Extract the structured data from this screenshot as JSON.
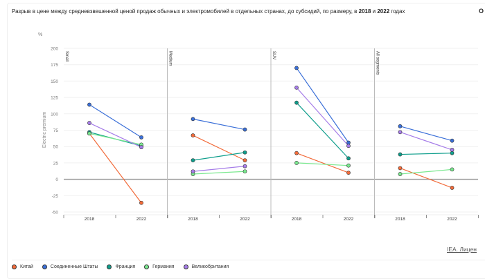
{
  "header": {
    "title_prefix": "Разрыв в цене между средневзвешенной ценой продаж обычных и электромобилей в отдельных странах, до субсидий, по размеру, в ",
    "year1": "2018",
    "and": " и ",
    "year2": "2022",
    "title_suffix": " годах",
    "options_label": "O"
  },
  "credit": "IEA. Лицен",
  "chart_data": {
    "type": "line",
    "unit_label": "%",
    "ylabel": "Electric premium",
    "ylim": [
      -50,
      200
    ],
    "yticks": [
      "200",
      "175",
      "150",
      "125",
      "100",
      "75",
      "50",
      "25",
      "0",
      "-25",
      "-50"
    ],
    "panels": [
      "Small",
      "Medium",
      "SUV",
      "All segments"
    ],
    "x": [
      "2018",
      "2022"
    ],
    "series": [
      {
        "name": "Китай",
        "color": "#f26b3a",
        "values": [
          [
            70,
            -36
          ],
          [
            67,
            29
          ],
          [
            40,
            10
          ],
          [
            17,
            -13
          ]
        ]
      },
      {
        "name": "Соединенные Штаты",
        "color": "#3a6fd8",
        "values": [
          [
            114,
            64
          ],
          [
            92,
            76
          ],
          [
            170,
            56
          ],
          [
            81,
            59
          ]
        ]
      },
      {
        "name": "Франция",
        "color": "#0f9e8c",
        "values": [
          [
            72,
            51
          ],
          [
            29,
            41
          ],
          [
            117,
            32
          ],
          [
            38,
            40
          ]
        ]
      },
      {
        "name": "Германия",
        "color": "#7ae88f",
        "values": [
          [
            70,
            53
          ],
          [
            8,
            12
          ],
          [
            25,
            21
          ],
          [
            8,
            15
          ]
        ]
      },
      {
        "name": "Великобритания",
        "color": "#a57ce8",
        "values": [
          [
            86,
            49
          ],
          [
            12,
            20
          ],
          [
            140,
            51
          ],
          [
            72,
            45
          ]
        ]
      }
    ],
    "legend_position": "bottom-left"
  }
}
